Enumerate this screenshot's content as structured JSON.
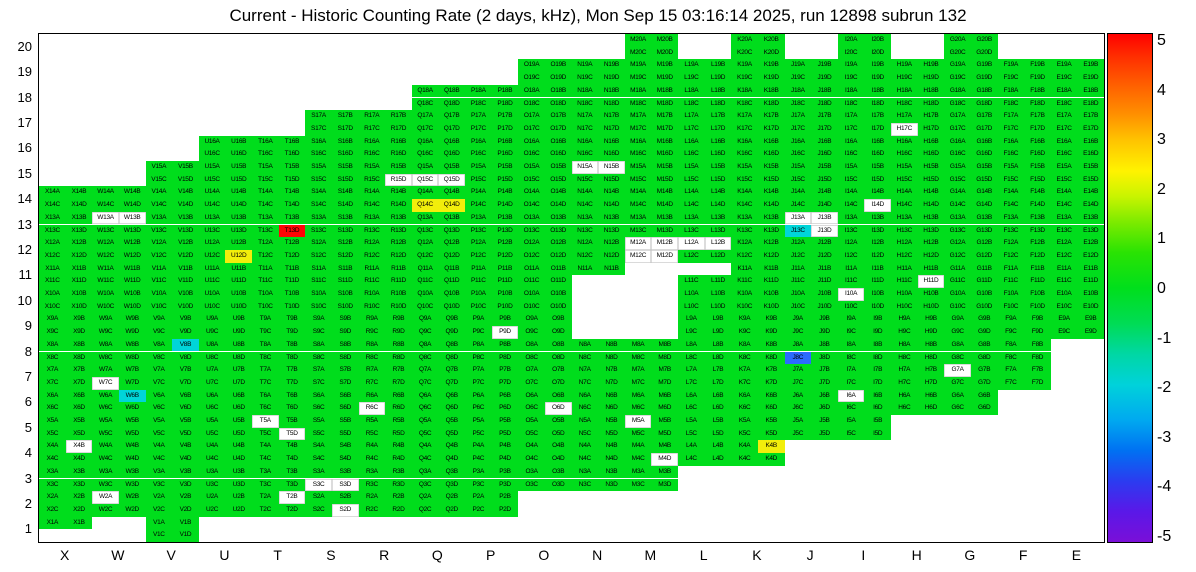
{
  "title": "Current - Historic Counting Rate (2 days, kHz), Mon Sep 15 03:16:14 2025, run 12898 subrun 132",
  "colorbar": {
    "min": -5,
    "max": 5,
    "ticks": [
      "5",
      "4",
      "3",
      "2",
      "1",
      "0",
      "-1",
      "-2",
      "-3",
      "-4",
      "-5"
    ]
  },
  "chart_data": {
    "type": "heatmap",
    "title": "Current - Historic Counting Rate (2 days, kHz), Mon Sep 15 03:16:14 2025, run 12898 subrun 132",
    "units": "kHz",
    "value_range": [
      -5,
      5
    ],
    "columns": [
      "X",
      "W",
      "V",
      "U",
      "T",
      "S",
      "R",
      "Q",
      "P",
      "O",
      "N",
      "M",
      "L",
      "K",
      "J",
      "I",
      "H",
      "G",
      "F",
      "E"
    ],
    "rows": [
      20,
      19,
      18,
      17,
      16,
      15,
      14,
      13,
      12,
      11,
      10,
      9,
      8,
      7,
      6,
      5,
      4,
      3,
      2,
      1
    ],
    "subcells": [
      "A",
      "B",
      "C",
      "D"
    ],
    "default_value": 0.3,
    "colors": {
      "green": "#00dd1c",
      "red": "#ff0505",
      "yellow": "#f2ee0b",
      "cyan": "#00d5d9",
      "blue": "#2b6bff",
      "white": "#ffffff"
    },
    "color_values": {
      "green": 0.3,
      "yellow": 2,
      "red": 5,
      "cyan": -1.5,
      "blue": -3,
      "white": null
    },
    "row_layout": {
      "20": {
        "cols": [
          "M",
          "K",
          "I",
          "G"
        ]
      },
      "19": {
        "from": "O",
        "to": "E"
      },
      "18": {
        "from": "Q",
        "to": "E"
      },
      "17": {
        "from": "S",
        "to": "E"
      },
      "16": {
        "from": "U",
        "to": "E"
      },
      "15": {
        "from": "V",
        "to": "E"
      },
      "14": {
        "from": "X",
        "to": "E"
      },
      "13": {
        "from": "X",
        "to": "E"
      },
      "12": {
        "from": "X",
        "to": "E"
      },
      "11": {
        "from": "X",
        "to": "E"
      },
      "10": {
        "from": "X",
        "to": "E"
      },
      "9": {
        "from": "X",
        "to": "E"
      },
      "8": {
        "from": "X",
        "to": "F"
      },
      "7": {
        "from": "X",
        "to": "F"
      },
      "6": {
        "from": "X",
        "to": "G"
      },
      "5": {
        "from": "X",
        "to": "I"
      },
      "4": {
        "from": "X",
        "to": "K"
      },
      "3": {
        "from": "X",
        "to": "M"
      },
      "2": {
        "from": "X",
        "to": "P"
      },
      "1": {
        "cells": [
          "X1A",
          "X1B",
          "V1A",
          "V1B",
          "V1C",
          "V1D"
        ]
      }
    },
    "absent_cells": [
      "N11C",
      "N11D",
      "M11A",
      "M11B",
      "M11C",
      "M11D",
      "L11A",
      "L11B",
      "N10A",
      "N10B",
      "N10C",
      "N10D",
      "M10A",
      "M10B",
      "M10C",
      "M10D",
      "N9A",
      "N9B",
      "N9C",
      "N9D",
      "M9A",
      "M9B",
      "M9C",
      "M9D"
    ],
    "special_cells": {
      "T13D": "red",
      "U12D": "yellow",
      "Q14C": "yellow",
      "Q14D": "yellow",
      "K4B": "yellow",
      "W6B": "cyan",
      "V8B": "cyan",
      "J13C": "cyan",
      "J8C": "blue",
      "R15D": "white",
      "Q15C": "white",
      "Q15D": "white",
      "N15A": "white",
      "N15B": "white",
      "H17C": "white",
      "W13A": "white",
      "W13B": "white",
      "J13A": "white",
      "J13B": "white",
      "J13D": "white",
      "I14D": "white",
      "M12A": "white",
      "M12B": "white",
      "M12C": "white",
      "M12D": "white",
      "L12A": "white",
      "L12B": "white",
      "H11D": "white",
      "I10A": "white",
      "P9D": "white",
      "W7C": "white",
      "G7A": "white",
      "I6A": "white",
      "R6C": "white",
      "O6D": "white",
      "M5A": "white",
      "T5A": "white",
      "T5D": "white",
      "X4B": "white",
      "M4D": "white",
      "S3C": "white",
      "S3D": "white",
      "W2A": "white",
      "T2B": "white",
      "S2D": "white"
    },
    "legend_position": "right",
    "grid": false
  }
}
